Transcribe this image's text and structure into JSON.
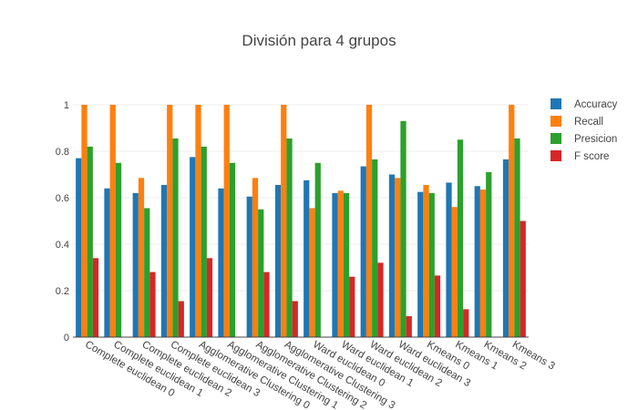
{
  "chart_data": {
    "type": "bar",
    "title": "División para 4 grupos",
    "xlabel": "",
    "ylabel": "",
    "ylim": [
      0,
      1
    ],
    "yticks": [
      0,
      0.2,
      0.4,
      0.6,
      0.8,
      1
    ],
    "ytick_labels": [
      "0",
      "0.2",
      "0.4",
      "0.6",
      "0.8",
      "1"
    ],
    "grid": true,
    "legend_position": "top-right",
    "categories": [
      "Complete euclidean 0",
      "Complete euclidean 1",
      "Complete euclidean 2",
      "Complete euclidean 3",
      "Agglomerative Clustering 0",
      "Agglomerative Clustering 1",
      "Agglomerative Clustering 2",
      "Agglomerative Clustering 3",
      "Ward euclidean 0",
      "Ward euclidean 1",
      "Ward euclidean 2",
      "Ward euclidean 3",
      "Kmeans 0",
      "Kmeans 1",
      "Kmeans 2",
      "Kmeans 3"
    ],
    "series": [
      {
        "name": "Accuracy",
        "color": "#1f77b4",
        "values": [
          0.77,
          0.64,
          0.62,
          0.655,
          0.775,
          0.64,
          0.605,
          0.655,
          0.675,
          0.62,
          0.735,
          0.7,
          0.625,
          0.665,
          0.65,
          0.765
        ]
      },
      {
        "name": "Recall",
        "color": "#ff7f0e",
        "values": [
          1.0,
          1.0,
          0.685,
          1.0,
          1.0,
          1.0,
          0.685,
          1.0,
          0.555,
          0.63,
          1.0,
          0.685,
          0.655,
          0.56,
          0.635,
          1.0
        ]
      },
      {
        "name": "Presicion",
        "color": "#2ca02c",
        "values": [
          0.82,
          0.75,
          0.555,
          0.855,
          0.82,
          0.75,
          0.55,
          0.855,
          0.75,
          0.62,
          0.765,
          0.93,
          0.62,
          0.85,
          0.71,
          0.855
        ]
      },
      {
        "name": "F score",
        "color": "#d62728",
        "values": [
          0.34,
          0.0,
          0.28,
          0.155,
          0.34,
          0.0,
          0.28,
          0.155,
          0.0,
          0.26,
          0.32,
          0.09,
          0.265,
          0.12,
          0.0,
          0.5
        ]
      }
    ]
  }
}
